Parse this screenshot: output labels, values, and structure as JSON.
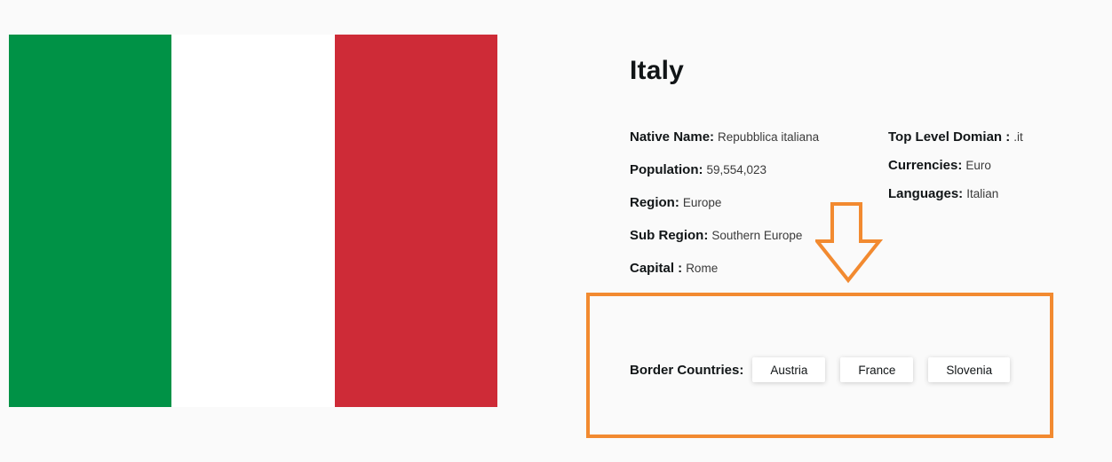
{
  "country": {
    "name": "Italy",
    "flag_colors": {
      "green": "#009246",
      "white": "#ffffff",
      "red": "#ce2b37"
    }
  },
  "details_left": [
    {
      "label": "Native Name:",
      "value": "Repubblica italiana"
    },
    {
      "label": "Population:",
      "value": "59,554,023"
    },
    {
      "label": "Region:",
      "value": "Europe"
    },
    {
      "label": "Sub Region:",
      "value": "Southern Europe"
    },
    {
      "label": "Capital :",
      "value": "Rome"
    }
  ],
  "details_right": [
    {
      "label": "Top Level Domian :",
      "value": ".it"
    },
    {
      "label": "Currencies:",
      "value": "Euro"
    },
    {
      "label": "Languages:",
      "value": "Italian"
    }
  ],
  "border": {
    "label": "Border Countries:",
    "countries": [
      "Austria",
      "France",
      "Slovenia"
    ]
  },
  "annotation": {
    "color": "#f28a30",
    "icon": "down-arrow-icon"
  }
}
